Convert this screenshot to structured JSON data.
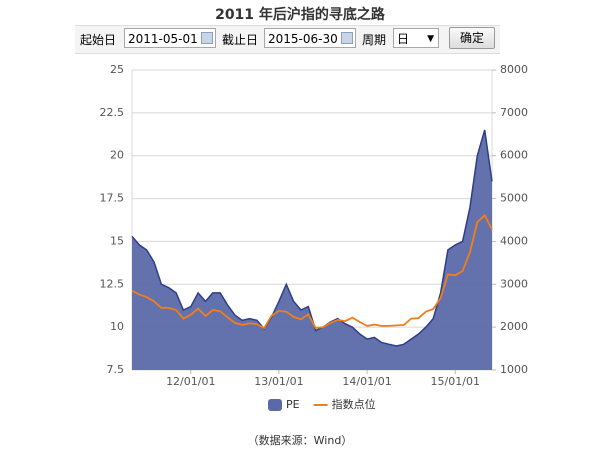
{
  "chart_data": {
    "type": "area-line",
    "title": "2011 年后沪指的寻底之路",
    "x": [
      "11/05/01",
      "11/06/01",
      "11/07/01",
      "11/08/01",
      "11/09/01",
      "11/10/01",
      "11/11/01",
      "11/12/01",
      "12/01/01",
      "12/02/01",
      "12/03/01",
      "12/04/01",
      "12/05/01",
      "12/06/01",
      "12/07/01",
      "12/08/01",
      "12/09/01",
      "12/10/01",
      "12/11/01",
      "12/12/01",
      "13/01/01",
      "13/02/01",
      "13/03/01",
      "13/04/01",
      "13/05/01",
      "13/06/01",
      "13/07/01",
      "13/08/01",
      "13/09/01",
      "13/10/01",
      "13/11/01",
      "13/12/01",
      "14/01/01",
      "14/02/01",
      "14/03/01",
      "14/04/01",
      "14/05/01",
      "14/06/01",
      "14/07/01",
      "14/08/01",
      "14/09/01",
      "14/10/01",
      "14/11/01",
      "14/12/01",
      "15/01/01",
      "15/02/01",
      "15/03/01",
      "15/04/01",
      "15/05/01",
      "15/06/01"
    ],
    "xticks": [
      "12/01/01",
      "13/01/01",
      "14/01/01",
      "15/01/01"
    ],
    "series": [
      {
        "name": "PE",
        "color": "#5b69a9",
        "values": [
          15.3,
          14.8,
          14.5,
          13.8,
          12.5,
          12.3,
          12.0,
          11.0,
          11.2,
          12.0,
          11.5,
          12.0,
          12.0,
          11.3,
          10.7,
          10.4,
          10.5,
          10.4,
          9.9,
          10.6,
          11.5,
          12.5,
          11.5,
          11.0,
          11.2,
          9.8,
          10.0,
          10.3,
          10.5,
          10.2,
          10.0,
          9.6,
          9.3,
          9.4,
          9.1,
          9.0,
          8.9,
          9.0,
          9.3,
          9.6,
          10.0,
          10.5,
          12.0,
          14.5,
          14.8,
          15.0,
          17.0,
          20.0,
          21.5,
          18.5
        ]
      },
      {
        "name": "指数点位",
        "color": "#f07f1a",
        "axis": "y2",
        "values": [
          2850,
          2760,
          2700,
          2600,
          2450,
          2450,
          2400,
          2200,
          2290,
          2430,
          2260,
          2400,
          2370,
          2230,
          2100,
          2050,
          2090,
          2070,
          1980,
          2270,
          2380,
          2360,
          2240,
          2180,
          2300,
          1980,
          2000,
          2100,
          2170,
          2140,
          2220,
          2120,
          2030,
          2060,
          2030,
          2030,
          2040,
          2050,
          2200,
          2210,
          2360,
          2420,
          2680,
          3230,
          3210,
          3310,
          3750,
          4450,
          4610,
          4280
        ]
      }
    ],
    "ylim": [
      7.5,
      25
    ],
    "yticks": [
      7.5,
      10,
      12.5,
      15,
      17.5,
      20,
      22.5,
      25
    ],
    "y2lim": [
      1000,
      8000
    ],
    "y2ticks": [
      1000,
      2000,
      3000,
      4000,
      5000,
      6000,
      7000,
      8000
    ],
    "grid": true,
    "legend": "bottom"
  },
  "controls": {
    "start_label": "起始日",
    "start_date": "2011-05-01",
    "end_label": "截止日",
    "end_date": "2015-06-30",
    "period_label": "周期",
    "period": "日",
    "confirm": "确定"
  },
  "source": "（数据来源：Wind）"
}
